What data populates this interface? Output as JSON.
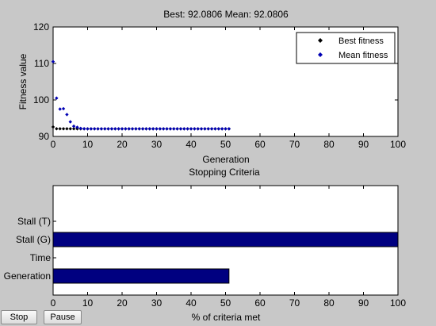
{
  "chart_data": [
    {
      "type": "scatter",
      "title": "Best: 92.0806 Mean: 92.0806",
      "xlabel": "Generation",
      "ylabel": "Fitness value",
      "xlim": [
        0,
        100
      ],
      "ylim": [
        90,
        120
      ],
      "x_ticks": [
        "0",
        "10",
        "20",
        "30",
        "40",
        "50",
        "60",
        "70",
        "80",
        "90",
        "100"
      ],
      "y_ticks": [
        "90",
        "100",
        "110",
        "120"
      ],
      "grid": false,
      "legend_placement": "top-right",
      "series": [
        {
          "name": "Best fitness",
          "color": "#000000",
          "x": [
            0,
            1,
            2,
            3,
            4,
            5,
            6,
            7,
            8,
            9,
            10,
            11,
            12,
            13,
            14,
            15,
            16,
            17,
            18,
            19,
            20,
            21,
            22,
            23,
            24,
            25,
            26,
            27,
            28,
            29,
            30,
            31,
            32,
            33,
            34,
            35,
            36,
            37,
            38,
            39,
            40,
            41,
            42,
            43,
            44,
            45,
            46,
            47,
            48,
            49,
            50,
            51
          ],
          "y": [
            92.6,
            92.1,
            92.1,
            92.1,
            92.1,
            92.1,
            92.1,
            92.0806,
            92.0806,
            92.0806,
            92.0806,
            92.0806,
            92.0806,
            92.0806,
            92.0806,
            92.0806,
            92.0806,
            92.0806,
            92.0806,
            92.0806,
            92.0806,
            92.0806,
            92.0806,
            92.0806,
            92.0806,
            92.0806,
            92.0806,
            92.0806,
            92.0806,
            92.0806,
            92.0806,
            92.0806,
            92.0806,
            92.0806,
            92.0806,
            92.0806,
            92.0806,
            92.0806,
            92.0806,
            92.0806,
            92.0806,
            92.0806,
            92.0806,
            92.0806,
            92.0806,
            92.0806,
            92.0806,
            92.0806,
            92.0806,
            92.0806,
            92.0806,
            92.0806
          ]
        },
        {
          "name": "Mean fitness",
          "color": "#0000b4",
          "x": [
            0,
            1,
            2,
            3,
            4,
            5,
            6,
            7,
            8,
            9,
            10,
            11,
            12,
            13,
            14,
            15,
            16,
            17,
            18,
            19,
            20,
            21,
            22,
            23,
            24,
            25,
            26,
            27,
            28,
            29,
            30,
            31,
            32,
            33,
            34,
            35,
            36,
            37,
            38,
            39,
            40,
            41,
            42,
            43,
            44,
            45,
            46,
            47,
            48,
            49,
            50,
            51
          ],
          "y": [
            110.5,
            100.5,
            97.5,
            97.6,
            96.0,
            94.0,
            92.8,
            92.5,
            92.2,
            92.1,
            92.0806,
            92.0806,
            92.0806,
            92.0806,
            92.0806,
            92.0806,
            92.0806,
            92.0806,
            92.0806,
            92.0806,
            92.0806,
            92.0806,
            92.0806,
            92.0806,
            92.0806,
            92.0806,
            92.0806,
            92.0806,
            92.0806,
            92.0806,
            92.0806,
            92.0806,
            92.0806,
            92.0806,
            92.0806,
            92.0806,
            92.0806,
            92.0806,
            92.0806,
            92.0806,
            92.0806,
            92.0806,
            92.0806,
            92.0806,
            92.0806,
            92.0806,
            92.0806,
            92.0806,
            92.0806,
            92.0806,
            92.0806,
            92.0806
          ]
        }
      ]
    },
    {
      "type": "bar",
      "orientation": "horizontal",
      "title": "Stopping Criteria",
      "xlabel": "% of criteria met",
      "ylabel": "",
      "xlim": [
        0,
        100
      ],
      "x_ticks": [
        "0",
        "10",
        "20",
        "30",
        "40",
        "50",
        "60",
        "70",
        "80",
        "90",
        "100"
      ],
      "categories": [
        "Stall (T)",
        "Stall (G)",
        "Time",
        "Generation"
      ],
      "values": [
        0,
        100,
        0,
        51
      ],
      "color": "#000080",
      "grid": false
    }
  ],
  "controls": {
    "stop_label": "Stop",
    "pause_label": "Pause"
  }
}
